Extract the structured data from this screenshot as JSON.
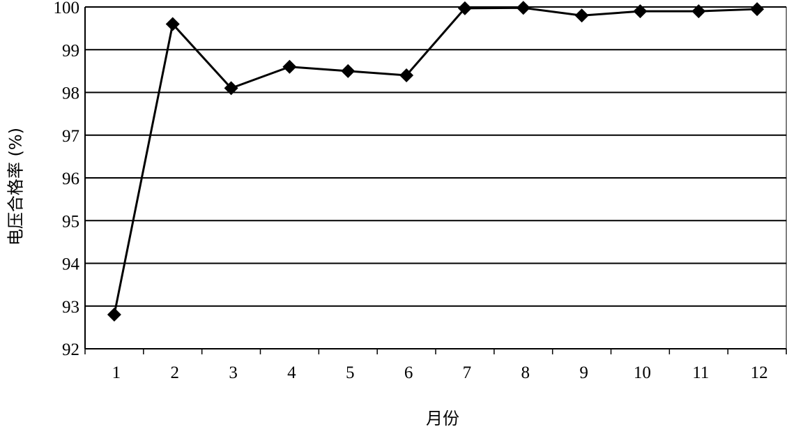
{
  "chart_data": {
    "type": "line",
    "title": "",
    "xlabel": "月份",
    "ylabel": "电压合格率 (%)",
    "categories": [
      "1",
      "2",
      "3",
      "4",
      "5",
      "6",
      "7",
      "8",
      "9",
      "10",
      "11",
      "12"
    ],
    "series": [
      {
        "values": [
          92.8,
          99.6,
          98.1,
          98.6,
          98.5,
          98.4,
          99.97,
          99.98,
          99.8,
          99.9,
          99.9,
          99.95
        ]
      }
    ],
    "ylim": [
      92,
      100
    ],
    "yticks": [
      92,
      93,
      94,
      95,
      96,
      97,
      98,
      99,
      100
    ],
    "grid": "horizontal",
    "marker": "diamond",
    "color": "#000000"
  }
}
